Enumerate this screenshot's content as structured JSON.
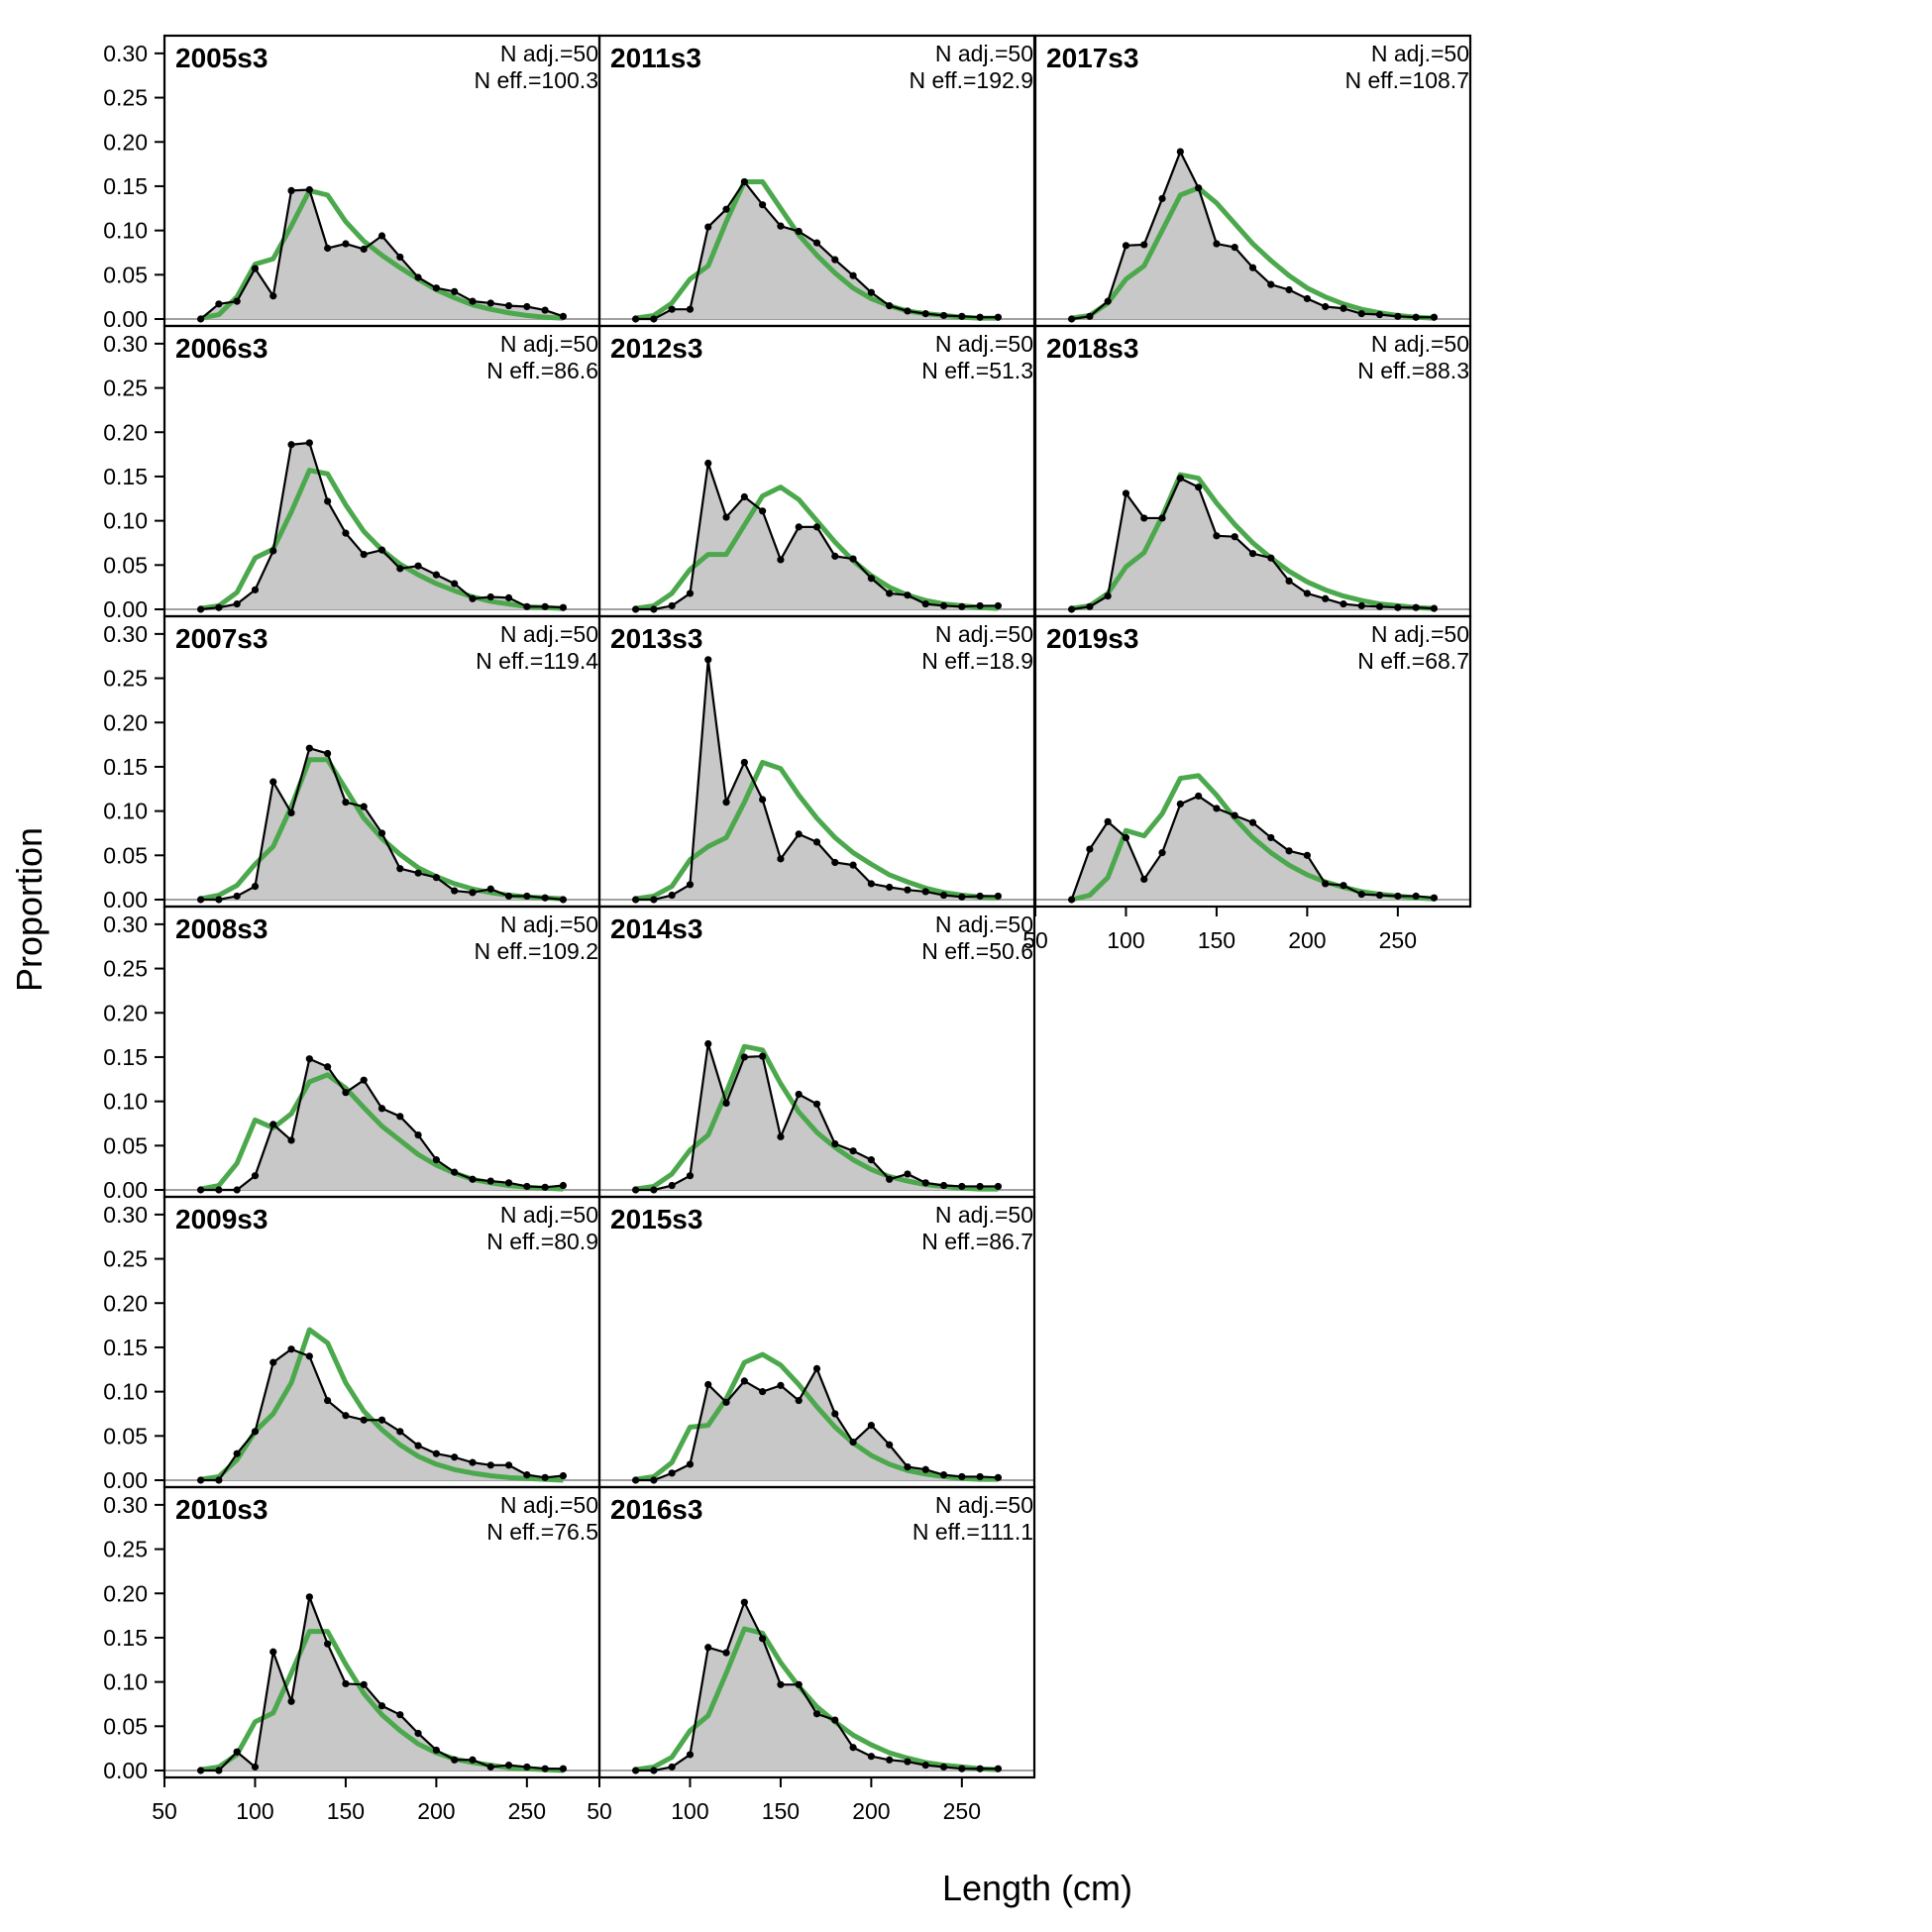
{
  "chart_data": {
    "type": "area",
    "xlabel": "Length (cm)",
    "ylabel": "Proportion",
    "xlim": [
      50,
      290
    ],
    "ylim": [
      0,
      0.32
    ],
    "x_ticks": [
      50,
      100,
      150,
      200,
      250
    ],
    "y_ticks": [
      0.0,
      0.05,
      0.1,
      0.15,
      0.2,
      0.25,
      0.3
    ],
    "y_tick_labels": [
      "0.00",
      "0.05",
      "0.10",
      "0.15",
      "0.20",
      "0.25",
      "0.30"
    ],
    "x_tick_labels": [
      "50",
      "100",
      "150",
      "200",
      "250"
    ],
    "bottom_axis_x_tick_labels": [
      "50",
      "100",
      "150",
      "200",
      "250"
    ],
    "colors": {
      "observed_fill": "#c8c8c8",
      "observed_line": "#000000",
      "expected_line": "#4ca84c",
      "zero_line": "#a0a0a0"
    },
    "x": [
      70,
      80,
      90,
      100,
      110,
      120,
      130,
      140,
      150,
      160,
      170,
      180,
      190,
      200,
      210,
      220,
      230,
      240,
      250,
      260,
      270
    ],
    "panels": [
      {
        "label": "2005s3",
        "n_adj": "N adj.=50",
        "n_eff": "N eff.=100.3",
        "col": 0,
        "row": 0,
        "observed": [
          0.0,
          0.017,
          0.02,
          0.057,
          0.026,
          0.145,
          0.146,
          0.08,
          0.085,
          0.079,
          0.094,
          0.07,
          0.047,
          0.035,
          0.031,
          0.02,
          0.018,
          0.015,
          0.014,
          0.01,
          0.003
        ],
        "expected": [
          0.001,
          0.005,
          0.025,
          0.062,
          0.068,
          0.105,
          0.145,
          0.14,
          0.11,
          0.088,
          0.072,
          0.058,
          0.045,
          0.033,
          0.024,
          0.016,
          0.011,
          0.007,
          0.004,
          0.002,
          0.001
        ]
      },
      {
        "label": "2006s3",
        "n_adj": "N adj.=50",
        "n_eff": "N eff.=86.6",
        "col": 0,
        "row": 1,
        "observed": [
          0.0,
          0.002,
          0.006,
          0.022,
          0.066,
          0.186,
          0.188,
          0.122,
          0.086,
          0.062,
          0.067,
          0.046,
          0.049,
          0.039,
          0.029,
          0.012,
          0.014,
          0.013,
          0.003,
          0.003,
          0.002
        ],
        "expected": [
          0.001,
          0.004,
          0.019,
          0.058,
          0.068,
          0.11,
          0.157,
          0.153,
          0.118,
          0.088,
          0.067,
          0.051,
          0.039,
          0.029,
          0.021,
          0.014,
          0.009,
          0.006,
          0.003,
          0.002,
          0.001
        ]
      },
      {
        "label": "2007s3",
        "n_adj": "N adj.=50",
        "n_eff": "N eff.=119.4",
        "col": 0,
        "row": 2,
        "observed": [
          0.0,
          0.0,
          0.004,
          0.015,
          0.133,
          0.098,
          0.171,
          0.165,
          0.11,
          0.105,
          0.075,
          0.035,
          0.03,
          0.025,
          0.01,
          0.008,
          0.012,
          0.004,
          0.004,
          0.002,
          0.0
        ],
        "expected": [
          0.001,
          0.005,
          0.016,
          0.04,
          0.06,
          0.105,
          0.158,
          0.158,
          0.125,
          0.092,
          0.069,
          0.051,
          0.036,
          0.026,
          0.018,
          0.012,
          0.008,
          0.005,
          0.003,
          0.002,
          0.001
        ]
      },
      {
        "label": "2008s3",
        "n_adj": "N adj.=50",
        "n_eff": "N eff.=109.2",
        "col": 0,
        "row": 3,
        "observed": [
          0.0,
          0.0,
          0.0,
          0.016,
          0.074,
          0.056,
          0.148,
          0.139,
          0.11,
          0.124,
          0.092,
          0.083,
          0.062,
          0.034,
          0.02,
          0.012,
          0.01,
          0.008,
          0.004,
          0.003,
          0.005
        ],
        "expected": [
          0.001,
          0.005,
          0.03,
          0.079,
          0.07,
          0.086,
          0.122,
          0.13,
          0.115,
          0.093,
          0.072,
          0.056,
          0.04,
          0.028,
          0.019,
          0.012,
          0.008,
          0.005,
          0.003,
          0.002,
          0.001
        ]
      },
      {
        "label": "2009s3",
        "n_adj": "N adj.=50",
        "n_eff": "N eff.=80.9",
        "col": 0,
        "row": 4,
        "observed": [
          0.0,
          0.0,
          0.03,
          0.055,
          0.133,
          0.148,
          0.14,
          0.09,
          0.073,
          0.068,
          0.068,
          0.055,
          0.039,
          0.03,
          0.026,
          0.02,
          0.017,
          0.017,
          0.006,
          0.003,
          0.005
        ],
        "expected": [
          0.001,
          0.004,
          0.023,
          0.055,
          0.075,
          0.11,
          0.17,
          0.155,
          0.11,
          0.078,
          0.057,
          0.04,
          0.027,
          0.018,
          0.012,
          0.008,
          0.005,
          0.003,
          0.002,
          0.001,
          0.0
        ]
      },
      {
        "label": "2010s3",
        "n_adj": "N adj.=50",
        "n_eff": "N eff.=76.5",
        "col": 0,
        "row": 5,
        "observed": [
          0.0,
          0.0,
          0.021,
          0.004,
          0.134,
          0.078,
          0.196,
          0.143,
          0.098,
          0.097,
          0.073,
          0.063,
          0.042,
          0.023,
          0.012,
          0.012,
          0.004,
          0.006,
          0.004,
          0.002,
          0.002
        ],
        "expected": [
          0.001,
          0.004,
          0.018,
          0.055,
          0.065,
          0.11,
          0.157,
          0.157,
          0.12,
          0.087,
          0.063,
          0.045,
          0.03,
          0.02,
          0.013,
          0.009,
          0.006,
          0.003,
          0.002,
          0.001,
          0.0
        ]
      },
      {
        "label": "2011s3",
        "n_adj": "N adj.=50",
        "n_eff": "N eff.=192.9",
        "col": 1,
        "row": 0,
        "observed": [
          0.0,
          0.0,
          0.011,
          0.011,
          0.104,
          0.124,
          0.155,
          0.129,
          0.105,
          0.099,
          0.086,
          0.067,
          0.049,
          0.03,
          0.015,
          0.009,
          0.006,
          0.004,
          0.003,
          0.002,
          0.002
        ],
        "expected": [
          0.001,
          0.004,
          0.018,
          0.045,
          0.06,
          0.11,
          0.155,
          0.155,
          0.125,
          0.095,
          0.072,
          0.052,
          0.035,
          0.023,
          0.015,
          0.009,
          0.006,
          0.004,
          0.002,
          0.001,
          0.001
        ]
      },
      {
        "label": "2012s3",
        "n_adj": "N adj.=50",
        "n_eff": "N eff.=51.3",
        "col": 1,
        "row": 1,
        "observed": [
          0.0,
          0.0,
          0.004,
          0.018,
          0.165,
          0.104,
          0.127,
          0.111,
          0.056,
          0.093,
          0.093,
          0.06,
          0.057,
          0.035,
          0.018,
          0.016,
          0.006,
          0.004,
          0.003,
          0.004,
          0.004
        ],
        "expected": [
          0.001,
          0.004,
          0.018,
          0.045,
          0.062,
          0.062,
          0.095,
          0.128,
          0.138,
          0.124,
          0.1,
          0.076,
          0.055,
          0.038,
          0.025,
          0.016,
          0.01,
          0.006,
          0.004,
          0.002,
          0.001
        ]
      },
      {
        "label": "2013s3",
        "n_adj": "N adj.=50",
        "n_eff": "N eff.=18.9",
        "col": 1,
        "row": 2,
        "observed": [
          0.0,
          0.0,
          0.005,
          0.017,
          0.271,
          0.11,
          0.155,
          0.113,
          0.046,
          0.074,
          0.065,
          0.042,
          0.039,
          0.018,
          0.014,
          0.011,
          0.009,
          0.005,
          0.003,
          0.004,
          0.004
        ],
        "expected": [
          0.001,
          0.004,
          0.015,
          0.045,
          0.06,
          0.07,
          0.11,
          0.155,
          0.148,
          0.118,
          0.092,
          0.07,
          0.053,
          0.04,
          0.028,
          0.02,
          0.013,
          0.008,
          0.005,
          0.003,
          0.002
        ]
      },
      {
        "label": "2014s3",
        "n_adj": "N adj.=50",
        "n_eff": "N eff.=50.6",
        "col": 1,
        "row": 3,
        "observed": [
          0.0,
          0.0,
          0.005,
          0.016,
          0.165,
          0.098,
          0.15,
          0.151,
          0.06,
          0.108,
          0.097,
          0.052,
          0.044,
          0.034,
          0.012,
          0.018,
          0.008,
          0.005,
          0.004,
          0.004,
          0.004
        ],
        "expected": [
          0.001,
          0.004,
          0.018,
          0.045,
          0.062,
          0.11,
          0.162,
          0.158,
          0.12,
          0.088,
          0.065,
          0.048,
          0.034,
          0.023,
          0.015,
          0.01,
          0.006,
          0.004,
          0.002,
          0.001,
          0.001
        ]
      },
      {
        "label": "2015s3",
        "n_adj": "N adj.=50",
        "n_eff": "N eff.=86.7",
        "col": 1,
        "row": 4,
        "observed": [
          0.0,
          0.0,
          0.008,
          0.018,
          0.108,
          0.088,
          0.112,
          0.1,
          0.107,
          0.09,
          0.126,
          0.075,
          0.043,
          0.062,
          0.04,
          0.015,
          0.012,
          0.006,
          0.004,
          0.004,
          0.003
        ],
        "expected": [
          0.001,
          0.004,
          0.02,
          0.06,
          0.062,
          0.092,
          0.133,
          0.142,
          0.13,
          0.108,
          0.083,
          0.06,
          0.042,
          0.028,
          0.018,
          0.011,
          0.007,
          0.004,
          0.002,
          0.001,
          0.001
        ]
      },
      {
        "label": "2016s3",
        "n_adj": "N adj.=50",
        "n_eff": "N eff.=111.1",
        "col": 1,
        "row": 5,
        "observed": [
          0.0,
          0.0,
          0.004,
          0.018,
          0.139,
          0.133,
          0.19,
          0.149,
          0.097,
          0.097,
          0.064,
          0.057,
          0.026,
          0.016,
          0.012,
          0.01,
          0.006,
          0.004,
          0.002,
          0.002,
          0.002
        ],
        "expected": [
          0.001,
          0.004,
          0.015,
          0.045,
          0.062,
          0.11,
          0.16,
          0.155,
          0.122,
          0.095,
          0.072,
          0.055,
          0.04,
          0.029,
          0.02,
          0.014,
          0.009,
          0.006,
          0.004,
          0.002,
          0.001
        ]
      },
      {
        "label": "2017s3",
        "n_adj": "N adj.=50",
        "n_eff": "N eff.=108.7",
        "col": 2,
        "row": 0,
        "observed": [
          0.0,
          0.003,
          0.02,
          0.083,
          0.084,
          0.136,
          0.189,
          0.148,
          0.085,
          0.081,
          0.058,
          0.039,
          0.033,
          0.023,
          0.014,
          0.012,
          0.006,
          0.005,
          0.003,
          0.002,
          0.002
        ],
        "expected": [
          0.001,
          0.004,
          0.018,
          0.045,
          0.06,
          0.1,
          0.14,
          0.148,
          0.131,
          0.108,
          0.085,
          0.066,
          0.049,
          0.035,
          0.025,
          0.017,
          0.011,
          0.007,
          0.004,
          0.002,
          0.001
        ]
      },
      {
        "label": "2018s3",
        "n_adj": "N adj.=50",
        "n_eff": "N eff.=88.3",
        "col": 2,
        "row": 1,
        "observed": [
          0.0,
          0.003,
          0.015,
          0.131,
          0.103,
          0.103,
          0.148,
          0.138,
          0.083,
          0.082,
          0.063,
          0.058,
          0.032,
          0.018,
          0.012,
          0.006,
          0.004,
          0.003,
          0.002,
          0.002,
          0.001
        ],
        "expected": [
          0.001,
          0.004,
          0.018,
          0.048,
          0.064,
          0.105,
          0.152,
          0.148,
          0.12,
          0.096,
          0.075,
          0.058,
          0.043,
          0.031,
          0.022,
          0.015,
          0.01,
          0.006,
          0.004,
          0.002,
          0.001
        ]
      },
      {
        "label": "2019s3",
        "n_adj": "N adj.=50",
        "n_eff": "N eff.=68.7",
        "col": 2,
        "row": 2,
        "observed": [
          0.0,
          0.057,
          0.088,
          0.07,
          0.023,
          0.053,
          0.108,
          0.117,
          0.103,
          0.095,
          0.087,
          0.07,
          0.055,
          0.05,
          0.018,
          0.016,
          0.006,
          0.005,
          0.004,
          0.004,
          0.002
        ],
        "expected": [
          0.0,
          0.005,
          0.025,
          0.078,
          0.072,
          0.097,
          0.137,
          0.14,
          0.118,
          0.092,
          0.07,
          0.053,
          0.039,
          0.028,
          0.02,
          0.014,
          0.009,
          0.006,
          0.004,
          0.002,
          0.001
        ]
      }
    ]
  }
}
